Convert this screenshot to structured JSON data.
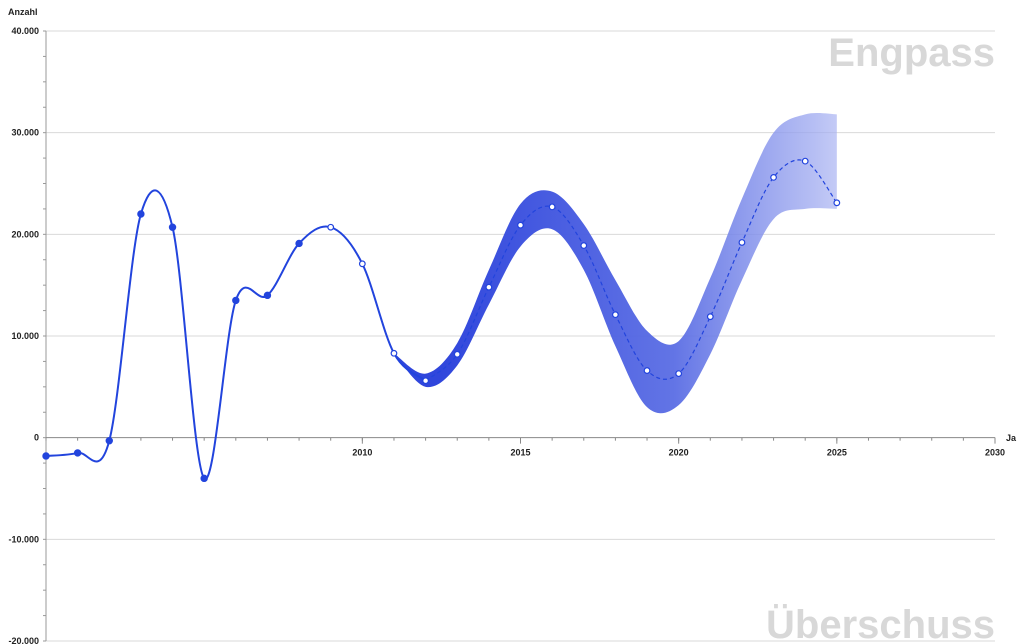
{
  "chart_data": {
    "type": "line",
    "ylabel": "Anzahl",
    "xlabel": "Ja",
    "ylim": [
      -20000,
      40000
    ],
    "xlim": [
      2000,
      2030
    ],
    "y_ticks": [
      40000,
      30000,
      20000,
      10000,
      0,
      -10000,
      -20000
    ],
    "y_tick_labels": [
      "40.000",
      "30.000",
      "20.000",
      "10.000",
      "0",
      "-10.000",
      "-20.000"
    ],
    "x_ticks": [
      2010,
      2015,
      2020,
      2025,
      2030
    ],
    "x_tick_labels": [
      "2010",
      "2015",
      "2020",
      "2025",
      "2030"
    ],
    "grid": "horizontal",
    "annotations": {
      "top": "Engpass",
      "bottom": "Überschuss"
    },
    "colors": {
      "line": "#2244dd",
      "band_dark": "#3a55e0",
      "band_light": "#c8d0f8",
      "grid": "#d9d9d9"
    },
    "series": [
      {
        "style": "solid",
        "points": [
          {
            "x": 2000,
            "y": -1800,
            "marker": "filled"
          },
          {
            "x": 2001,
            "y": -1500,
            "marker": "filled"
          },
          {
            "x": 2002,
            "y": -300,
            "marker": "filled"
          },
          {
            "x": 2003,
            "y": 22000,
            "marker": "filled"
          },
          {
            "x": 2004,
            "y": 20700,
            "marker": "filled"
          },
          {
            "x": 2005,
            "y": -4000,
            "marker": "filled"
          },
          {
            "x": 2006,
            "y": 13500,
            "marker": "filled"
          },
          {
            "x": 2007,
            "y": 14000,
            "marker": "filled"
          },
          {
            "x": 2008,
            "y": 19100,
            "marker": "filled"
          },
          {
            "x": 2009,
            "y": 20700,
            "marker": "open"
          },
          {
            "x": 2010,
            "y": 17100,
            "marker": "open"
          },
          {
            "x": 2011,
            "y": 8300,
            "marker": "open"
          },
          {
            "x": 2012,
            "y": 5600,
            "marker": "open"
          }
        ]
      },
      {
        "style": "dashed",
        "points": [
          {
            "x": 2012,
            "y": 5600,
            "marker": "open"
          },
          {
            "x": 2013,
            "y": 8200,
            "marker": "open"
          },
          {
            "x": 2014,
            "y": 14800,
            "marker": "open"
          },
          {
            "x": 2015,
            "y": 20900,
            "marker": "open"
          },
          {
            "x": 2016,
            "y": 22700,
            "marker": "open"
          },
          {
            "x": 2017,
            "y": 18900,
            "marker": "open"
          },
          {
            "x": 2018,
            "y": 12100,
            "marker": "open"
          },
          {
            "x": 2019,
            "y": 6600,
            "marker": "open"
          },
          {
            "x": 2020,
            "y": 6300,
            "marker": "open"
          },
          {
            "x": 2021,
            "y": 11900,
            "marker": "open"
          },
          {
            "x": 2022,
            "y": 19200,
            "marker": "open"
          },
          {
            "x": 2023,
            "y": 25600,
            "marker": "open"
          },
          {
            "x": 2024,
            "y": 27200,
            "marker": "open"
          },
          {
            "x": 2025,
            "y": 23100,
            "marker": "open"
          }
        ]
      }
    ],
    "band": {
      "x": [
        2011,
        2012,
        2013,
        2014,
        2015,
        2016,
        2017,
        2018,
        2019,
        2020,
        2021,
        2022,
        2023,
        2024,
        2025
      ],
      "upper": [
        8300,
        6300,
        9300,
        16500,
        23000,
        24200,
        21000,
        15500,
        10500,
        9500,
        15700,
        23500,
        30000,
        31800,
        31800
      ],
      "lower": [
        8300,
        5000,
        7100,
        13100,
        18800,
        20500,
        16500,
        9000,
        3000,
        3200,
        8200,
        15500,
        21500,
        22500,
        22500
      ]
    }
  }
}
